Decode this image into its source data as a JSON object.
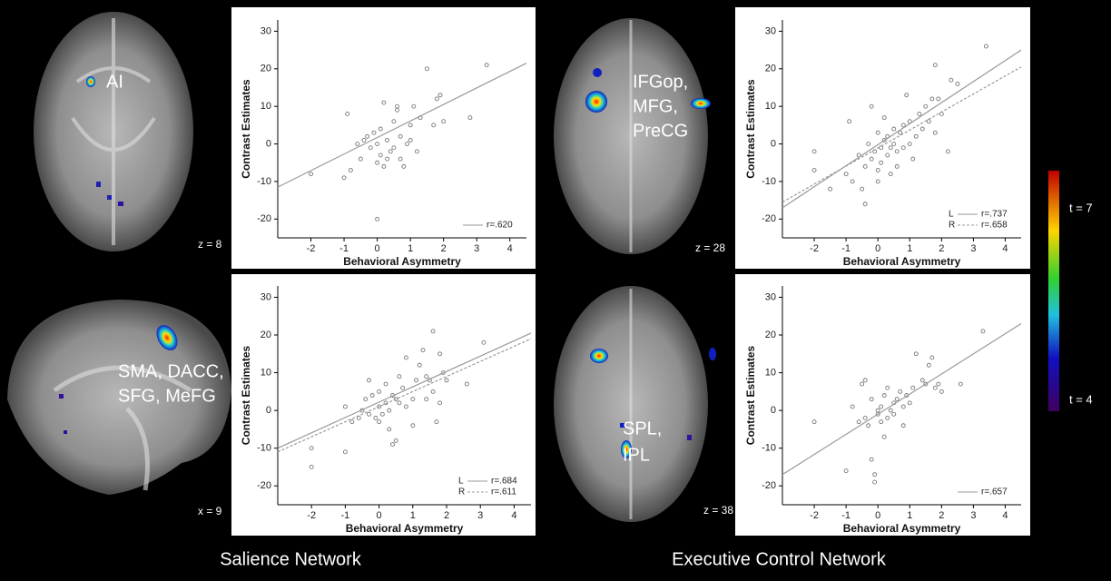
{
  "brain_panels": [
    {
      "labels": [
        "AI"
      ],
      "coord": "z = 8"
    },
    {
      "labels": [
        "SMA, DACC,",
        "SFG, MeFG"
      ],
      "coord": "x = 9"
    },
    {
      "labels": [
        "IFGop,",
        "MFG,",
        "PreCG"
      ],
      "coord": "z = 28"
    },
    {
      "labels": [
        "SPL,",
        "IPL"
      ],
      "coord": "z = 38"
    }
  ],
  "network_labels": [
    "Salience Network",
    "Executive Control Network"
  ],
  "colorbar": {
    "top_label": "t = 7",
    "bottom_label": "t = 4"
  },
  "chart_data": [
    {
      "type": "scatter",
      "x_label": "Behavioral Asymmetry",
      "y_label": "Contrast Estimates",
      "xlim": [
        -3,
        4.5
      ],
      "ylim": [
        -25,
        33
      ],
      "xticks": [
        -2,
        -1,
        0,
        1,
        2,
        3,
        4
      ],
      "yticks": [
        -20,
        -10,
        0,
        10,
        20,
        30
      ],
      "legend": "lower right",
      "series": [
        {
          "color": "#777777",
          "x": [
            -2,
            -1,
            -0.9,
            -0.8,
            -0.5,
            -0.4,
            -0.3,
            -0.2,
            -0.1,
            0,
            0,
            0,
            0.1,
            0.1,
            0.2,
            0.3,
            0.4,
            0.5,
            0.5,
            0.6,
            0.6,
            0.7,
            0.7,
            0.8,
            0.9,
            1,
            1,
            1.1,
            1.2,
            1.3,
            1.5,
            1.7,
            1.8,
            1.9,
            2,
            2.8,
            3.3,
            0.2,
            -0.6,
            0.3
          ],
          "y": [
            -8,
            -9,
            8,
            -7,
            -4,
            1,
            2,
            -1,
            3,
            -5,
            -20,
            0,
            4,
            -3,
            -6,
            1,
            -2,
            6,
            -1,
            10,
            9,
            2,
            -4,
            -6,
            0,
            1,
            5,
            10,
            -2,
            7,
            20,
            5,
            12,
            13,
            6,
            7,
            21,
            11,
            0,
            -4
          ]
        }
      ],
      "fits": [
        {
          "r_label": "r=.620",
          "dash": false,
          "color": "#999999",
          "x": [
            -3,
            4.5
          ],
          "y": [
            -11.5,
            21.5
          ]
        }
      ]
    },
    {
      "type": "scatter",
      "x_label": "Behavioral Asymmetry",
      "y_label": "Contrast Estimates",
      "xlim": [
        -3,
        4.5
      ],
      "ylim": [
        -25,
        33
      ],
      "xticks": [
        -2,
        -1,
        0,
        1,
        2,
        3,
        4
      ],
      "yticks": [
        -20,
        -10,
        0,
        10,
        20,
        30
      ],
      "legend": "lower right",
      "series": [
        {
          "color": "#777777",
          "x": [
            -2,
            -2,
            -1,
            -1,
            -0.8,
            -0.6,
            -0.5,
            -0.4,
            -0.3,
            -0.2,
            -0.1,
            0,
            0,
            0,
            0.1,
            0.2,
            0.2,
            0.3,
            0.3,
            0.4,
            0.5,
            0.5,
            0.6,
            0.6,
            0.7,
            0.8,
            0.8,
            1,
            1,
            1.1,
            1.2,
            1.3,
            1.4,
            1.5,
            1.6,
            1.6,
            1.7,
            1.8,
            1.8,
            1.9,
            2,
            2.6,
            3.1,
            -0.3,
            0.4,
            1.4
          ],
          "y": [
            -10,
            -15,
            1,
            -11,
            -3,
            -2,
            0,
            3,
            -1,
            4,
            -2,
            1,
            5,
            -3,
            -1,
            2,
            7,
            -5,
            0,
            4,
            -8,
            3,
            2,
            9,
            6,
            14,
            1,
            3,
            -4,
            8,
            12,
            16,
            3,
            8,
            5,
            21,
            -3,
            2,
            15,
            10,
            8,
            7,
            18,
            8,
            -9,
            9
          ]
        }
      ],
      "fits": [
        {
          "name": "L",
          "r_label": "r=.684",
          "dash": false,
          "color": "#999999",
          "x": [
            -3,
            4.5
          ],
          "y": [
            -10,
            20.5
          ]
        },
        {
          "name": "R",
          "r_label": "r=.611",
          "dash": true,
          "color": "#999999",
          "x": [
            -3,
            4.5
          ],
          "y": [
            -11,
            19
          ]
        }
      ]
    },
    {
      "type": "scatter",
      "x_label": "Behavioral Asymmetry",
      "y_label": "Contrast Estimates",
      "xlim": [
        -3,
        4.5
      ],
      "ylim": [
        -25,
        33
      ],
      "xticks": [
        -2,
        -1,
        0,
        1,
        2,
        3,
        4
      ],
      "yticks": [
        -20,
        -10,
        0,
        10,
        20,
        30
      ],
      "legend": "lower right",
      "series": [
        {
          "color": "#777777",
          "x": [
            -2,
            -2,
            -1,
            -0.9,
            -0.8,
            -0.6,
            -0.5,
            -0.4,
            -0.4,
            -0.3,
            -0.2,
            -0.2,
            -0.1,
            0,
            0,
            0,
            0.1,
            0.1,
            0.2,
            0.2,
            0.3,
            0.3,
            0.4,
            0.4,
            0.5,
            0.5,
            0.6,
            0.6,
            0.7,
            0.8,
            0.8,
            1,
            1,
            1.1,
            1.2,
            1.3,
            1.4,
            1.5,
            1.6,
            1.8,
            1.8,
            1.9,
            2,
            2.2,
            2.3,
            2.5,
            3.4,
            -1.5,
            0.9,
            1.7
          ],
          "y": [
            -2,
            -7,
            -8,
            6,
            -10,
            -3,
            -12,
            -6,
            -16,
            0,
            -4,
            10,
            -2,
            -7,
            3,
            -10,
            -1,
            -5,
            1,
            7,
            -3,
            2,
            -8,
            -1,
            4,
            0,
            -6,
            -2,
            3,
            5,
            -1,
            0,
            6,
            -4,
            2,
            8,
            4,
            10,
            6,
            3,
            21,
            12,
            8,
            -2,
            17,
            16,
            26,
            -12,
            13,
            12
          ]
        }
      ],
      "fits": [
        {
          "name": "L",
          "r_label": "r=.737",
          "dash": false,
          "color": "#999999",
          "x": [
            -3,
            4.5
          ],
          "y": [
            -17,
            25
          ]
        },
        {
          "name": "R",
          "r_label": "r=.658",
          "dash": true,
          "color": "#999999",
          "x": [
            -3,
            4.5
          ],
          "y": [
            -15.5,
            20.5
          ]
        }
      ]
    },
    {
      "type": "scatter",
      "x_label": "Behavioral Asymmetry",
      "y_label": "Contrast Estimates",
      "xlim": [
        -3,
        4.5
      ],
      "ylim": [
        -25,
        33
      ],
      "xticks": [
        -2,
        -1,
        0,
        1,
        2,
        3,
        4
      ],
      "yticks": [
        -20,
        -10,
        0,
        10,
        20,
        30
      ],
      "legend": "lower right",
      "series": [
        {
          "color": "#777777",
          "x": [
            -2,
            -1,
            -0.8,
            -0.6,
            -0.5,
            -0.4,
            -0.3,
            -0.2,
            -0.2,
            -0.1,
            -0.1,
            0,
            0,
            0.1,
            0.1,
            0.2,
            0.3,
            0.3,
            0.4,
            0.5,
            0.5,
            0.6,
            0.7,
            0.8,
            0.9,
            1,
            1.1,
            1.2,
            1.4,
            1.5,
            1.6,
            1.7,
            1.8,
            1.9,
            2,
            2.6,
            3.3,
            -0.4,
            0.2,
            0.8
          ],
          "y": [
            -3,
            -16,
            1,
            -3,
            7,
            -2,
            -4,
            3,
            -13,
            -17,
            -19,
            0,
            -1,
            -3,
            1,
            4,
            -2,
            6,
            0,
            -1,
            2,
            3,
            5,
            1,
            4,
            2,
            6,
            15,
            8,
            7,
            12,
            14,
            6,
            7,
            5,
            7,
            21,
            8,
            -7,
            -4
          ]
        }
      ],
      "fits": [
        {
          "r_label": "r=.657",
          "dash": false,
          "color": "#999999",
          "x": [
            -3,
            4.5
          ],
          "y": [
            -17,
            23
          ]
        }
      ]
    }
  ]
}
